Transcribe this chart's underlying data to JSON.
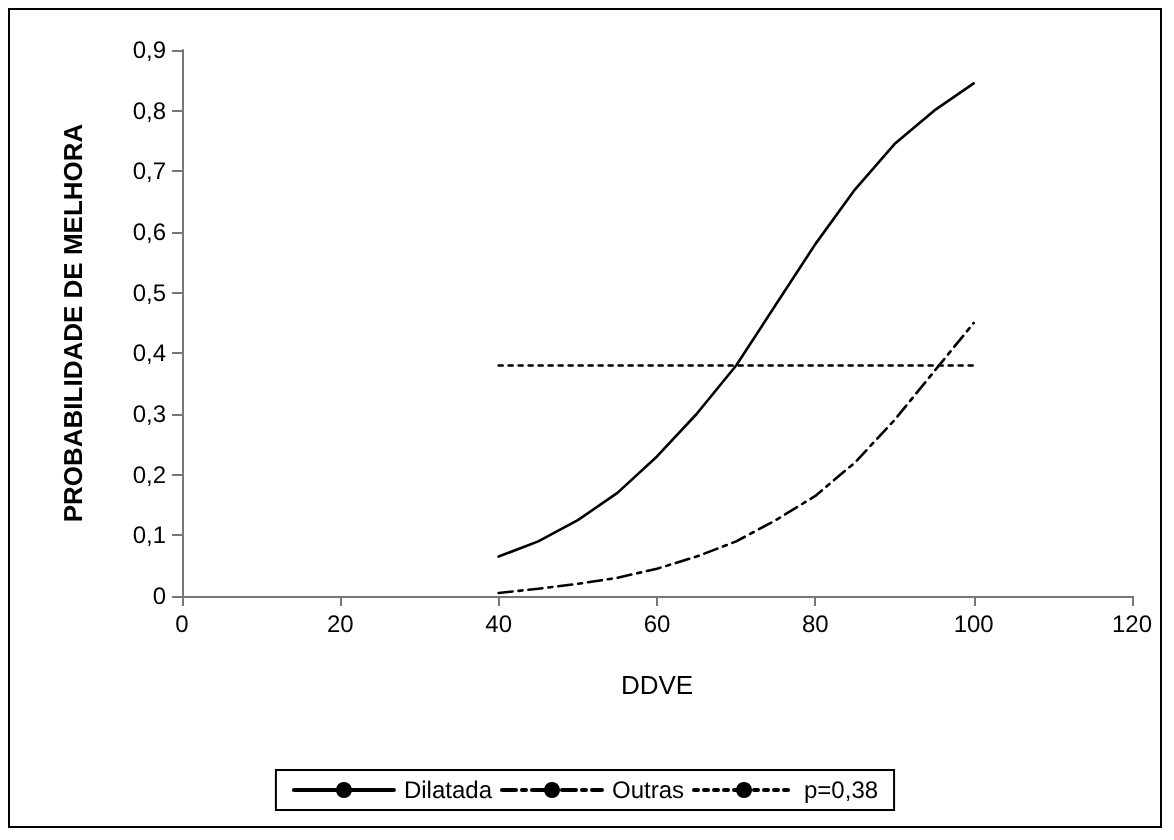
{
  "chart_data": {
    "type": "line",
    "xlabel": "DDVE",
    "ylabel": "PROBABILIDADE DE MELHORA",
    "xlim": [
      0,
      120
    ],
    "xticks": [
      0,
      20,
      40,
      60,
      80,
      100,
      120
    ],
    "ylim": [
      0,
      0.9
    ],
    "yticks": [
      0,
      {
        "value": 0.1,
        "label": "0,1"
      },
      {
        "value": 0.2,
        "label": "0,2"
      },
      {
        "value": 0.3,
        "label": "0,3"
      },
      {
        "value": 0.4,
        "label": "0,4"
      },
      {
        "value": 0.5,
        "label": "0,5"
      },
      {
        "value": 0.6,
        "label": "0,6"
      },
      {
        "value": 0.7,
        "label": "0,7"
      },
      {
        "value": 0.8,
        "label": "0,8"
      },
      {
        "value": 0.9,
        "label": "0,9"
      }
    ],
    "grid": false,
    "legend": "bottom",
    "marker": "none",
    "series": [
      {
        "name": "Dilatada",
        "color": "#000000",
        "line_style": "solid",
        "x": [
          40,
          45,
          50,
          55,
          60,
          65,
          70,
          75,
          80,
          85,
          90,
          95,
          100
        ],
        "values": [
          0.065,
          0.09,
          0.125,
          0.17,
          0.23,
          0.3,
          0.38,
          0.48,
          0.58,
          0.67,
          0.745,
          0.8,
          0.845
        ]
      },
      {
        "name": "Outras",
        "color": "#000000",
        "line_style": "dashdot",
        "x": [
          40,
          45,
          50,
          55,
          60,
          65,
          70,
          75,
          80,
          85,
          90,
          95,
          100
        ],
        "values": [
          0.005,
          0.012,
          0.02,
          0.03,
          0.045,
          0.065,
          0.09,
          0.125,
          0.165,
          0.22,
          0.29,
          0.37,
          0.45
        ]
      },
      {
        "name": "p=0,38",
        "color": "#000000",
        "line_style": "dotted",
        "x": [
          40,
          100
        ],
        "values": [
          0.38,
          0.38
        ]
      }
    ]
  }
}
